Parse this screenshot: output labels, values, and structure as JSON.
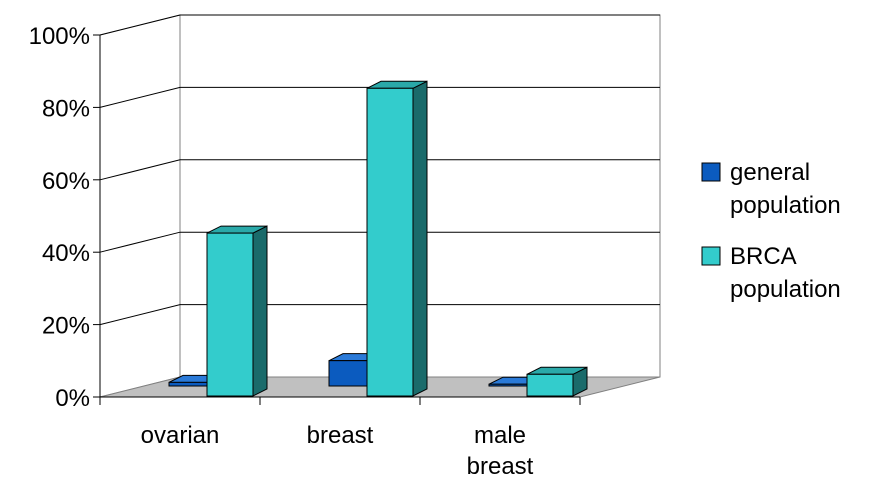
{
  "chart_data": {
    "type": "bar",
    "style": "3d-clustered-column",
    "categories": [
      [
        "ovarian"
      ],
      [
        "breast"
      ],
      [
        "male",
        "breast"
      ]
    ],
    "series": [
      {
        "name": [
          "general",
          "population"
        ],
        "values": [
          1,
          7,
          0.5
        ],
        "color": "#0b5bbf",
        "side_color": "#083f86",
        "top_color": "#2a7ad8"
      },
      {
        "name": [
          "BRCA",
          "population"
        ],
        "values": [
          45,
          85,
          6
        ],
        "color": "#33cccc",
        "side_color": "#1a6b6b",
        "top_color": "#2aa9a9"
      }
    ],
    "y_ticks": [
      "0%",
      "20%",
      "40%",
      "60%",
      "80%",
      "100%"
    ],
    "ylim": [
      0,
      100
    ],
    "grid": true,
    "legend_position": "right",
    "floor_color": "#c0c0c0"
  }
}
